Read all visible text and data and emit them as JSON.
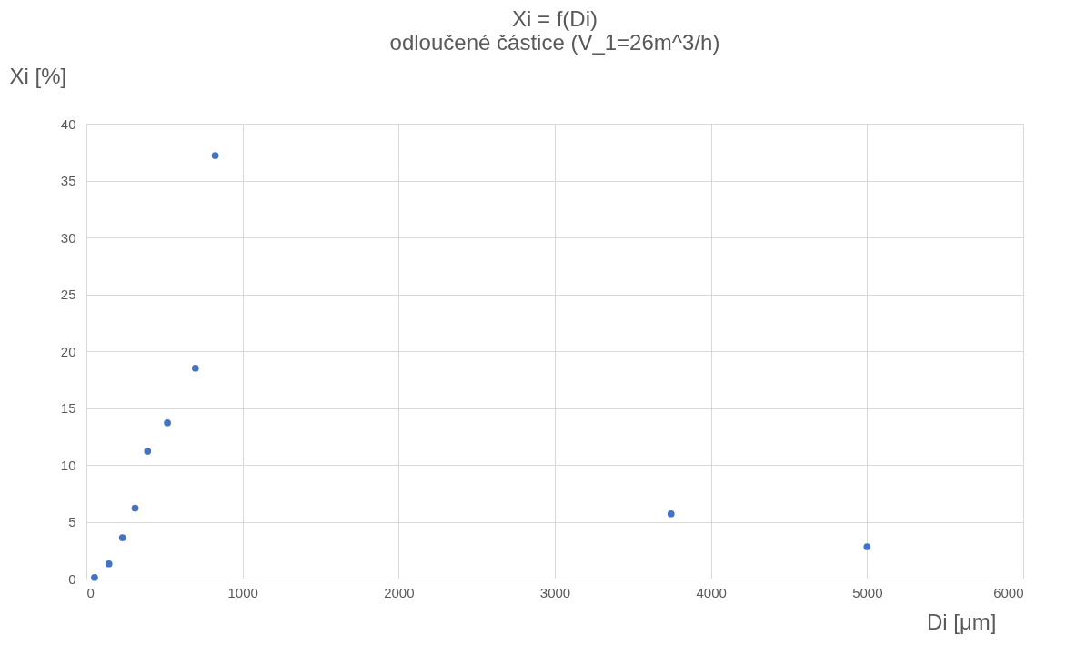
{
  "chart_data": {
    "type": "scatter",
    "title": [
      "Xi = f(Di)",
      "odloučené částice (V_1=26m^3/h)"
    ],
    "xlabel": "Di [μm]",
    "ylabel": "Xi [%]",
    "x": [
      52,
      144,
      231,
      312,
      392,
      519,
      698,
      825,
      3744,
      5000
    ],
    "series": [
      {
        "color": "#4472c4",
        "values": [
          0.1,
          1.3,
          3.6,
          6.2,
          11.2,
          13.7,
          18.5,
          37.2,
          5.7,
          2.8
        ]
      }
    ],
    "xlim": [
      0,
      6000
    ],
    "xticks": [
      0,
      {
        "value": 1000,
        "label": "1000"
      },
      {
        "value": 2000,
        "label": "2000"
      },
      {
        "value": 3000,
        "label": "3000"
      },
      {
        "value": 4000,
        "label": "4000"
      },
      {
        "value": 5000,
        "label": "5000"
      },
      {
        "value": 6000,
        "label": "6000"
      }
    ],
    "ylim": [
      0,
      40
    ],
    "yticks": [
      0,
      5,
      10,
      15,
      20,
      25,
      30,
      35,
      40
    ],
    "grid": true,
    "marker": "circle"
  }
}
